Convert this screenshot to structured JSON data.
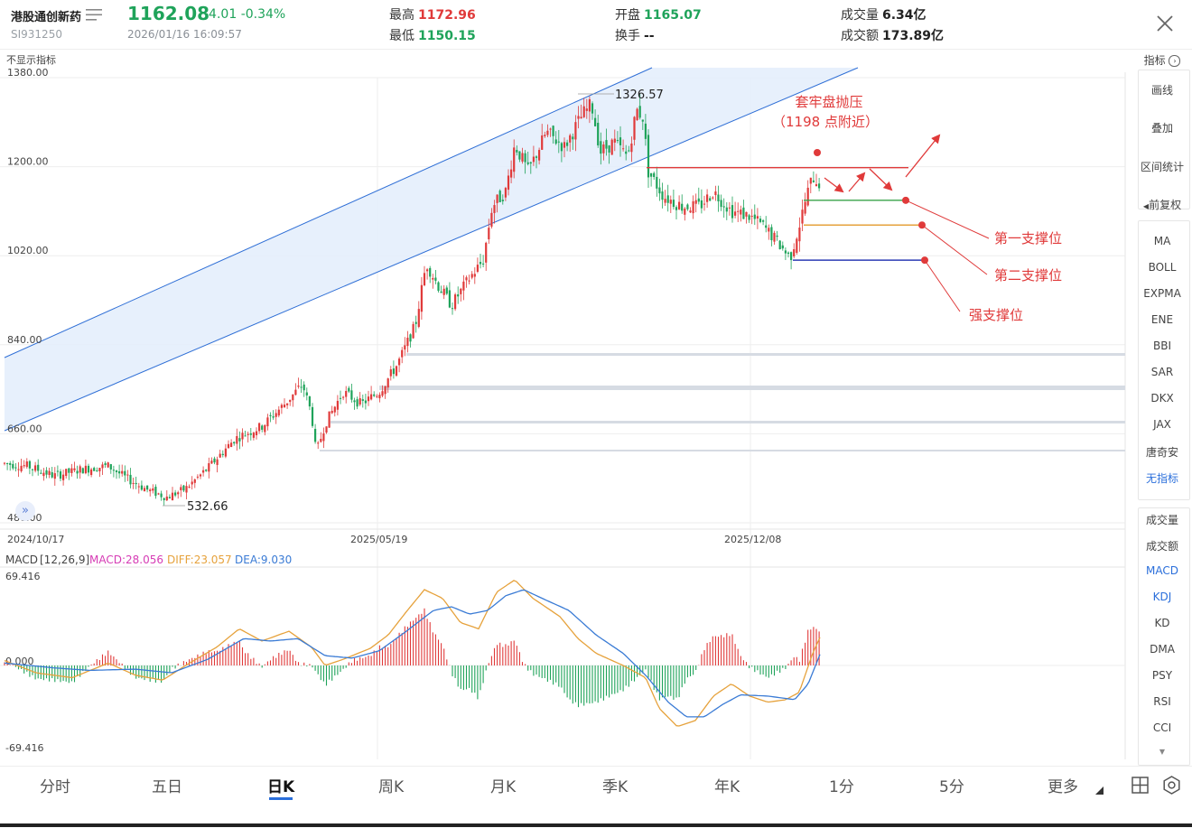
{
  "header": {
    "name": "港股通创新药",
    "code": "SI931250",
    "price": "1162.08",
    "change": "-4.01",
    "change_pct": "-0.34%",
    "timestamp": "2026/01/16 16:09:57",
    "high_label": "最高",
    "high": "1172.96",
    "low_label": "最低",
    "low": "1150.15",
    "open_label": "开盘",
    "open": "1165.07",
    "turnover_label": "换手",
    "turnover": "--",
    "volume_label": "成交量",
    "volume": "6.34亿",
    "amount_label": "成交额",
    "amount": "173.89亿"
  },
  "toolbar": {
    "hide_indicator": "不显示指标",
    "indicator_label": "指标"
  },
  "chart_data": [
    {
      "type": "candlestick",
      "ylim": [
        480,
        1380
      ],
      "yticks": [
        "1380.00",
        "1200.00",
        "1020.00",
        "840.00",
        "660.00",
        "480.00"
      ],
      "xticks": [
        "2024/10/17",
        "2025/05/19",
        "2025/12/08"
      ],
      "annotations": {
        "high_mark": "1326.57",
        "low_mark": "532.66",
        "pressure_title": "套牢盘抛压",
        "pressure_sub": "（1198 点附近）",
        "support1": "第一支撑位",
        "support2": "第二支撑位",
        "support3": "强支撑位"
      },
      "levels": [
        {
          "name": "pressure",
          "value": 1198,
          "color": "#e03a3a"
        },
        {
          "name": "support1",
          "value": 1132,
          "color": "#3aa34a"
        },
        {
          "name": "support2",
          "value": 1082,
          "color": "#e6a23c"
        },
        {
          "name": "support3",
          "value": 1011,
          "color": "#2b3bb5"
        }
      ],
      "colors": {
        "up": "#e03a3a",
        "down": "#1fa35a",
        "channel": "#2f6fd6"
      }
    },
    {
      "type": "macd",
      "title": "MACD",
      "params": "[12,26,9]",
      "macd_label": "MACD:28.056",
      "diff_label": "DIFF:23.057",
      "dea_label": "DEA:9.030",
      "yticks": [
        "69.416",
        "0.000",
        "-69.416"
      ],
      "ylim": [
        -69.416,
        69.416
      ],
      "colors": {
        "macd": "#d63cb5",
        "diff": "#e6a23c",
        "dea": "#3a7bd5"
      }
    }
  ],
  "sidepanel": {
    "tools": [
      "画线",
      "叠加",
      "区间统计",
      "前复权"
    ],
    "main_indicators": [
      "MA",
      "BOLL",
      "EXPMA",
      "ENE",
      "BBI",
      "SAR",
      "DKX",
      "JAX",
      "唐奇安",
      "无指标"
    ],
    "sub_indicators": [
      "成交量",
      "成交额",
      "MACD",
      "KDJ",
      "KD",
      "DMA",
      "PSY",
      "RSI",
      "CCI"
    ],
    "active_main": "无指标",
    "active_sub": "MACD"
  },
  "tabs": [
    "分时",
    "五日",
    "日K",
    "周K",
    "月K",
    "季K",
    "年K",
    "1分",
    "5分",
    "更多"
  ],
  "active_tab": "日K"
}
